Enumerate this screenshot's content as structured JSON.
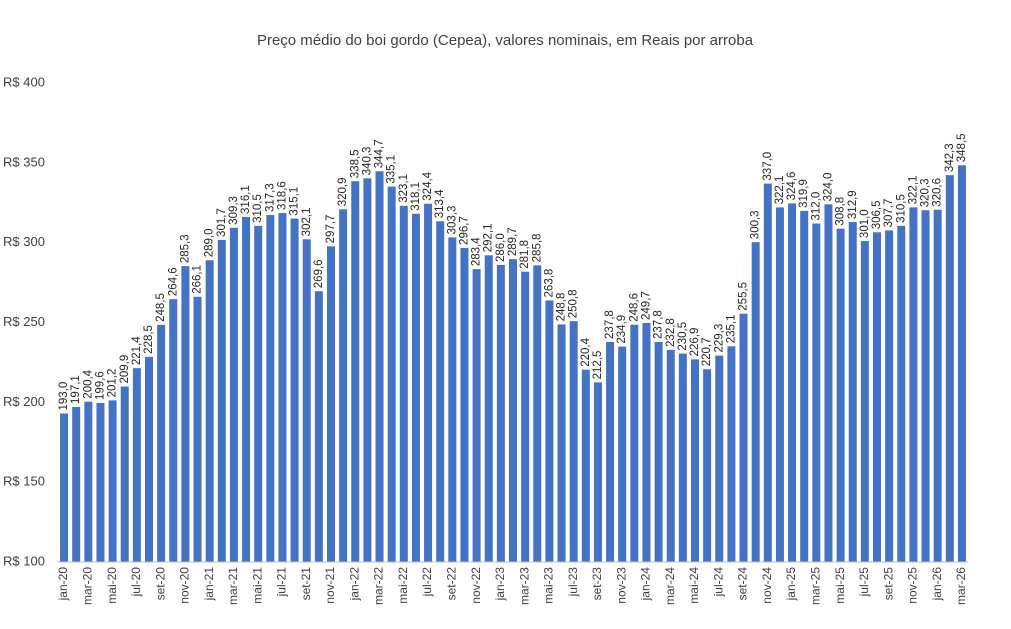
{
  "chart_data": {
    "type": "bar",
    "title": "Preço médio do boi gordo (Cepea), valores nominais, em Reais por arroba",
    "categories": [
      "jan-20",
      null,
      "mar-20",
      null,
      "mai-20",
      null,
      "jul-20",
      null,
      "set-20",
      null,
      "nov-20",
      null,
      "jan-21",
      null,
      "mar-21",
      null,
      "mai-21",
      null,
      "jul-21",
      null,
      "set-21",
      null,
      "nov-21",
      null,
      "jan-22",
      null,
      "mar-22",
      null,
      "mai-22",
      null,
      "jul-22",
      null,
      "set-22",
      null,
      "nov-22",
      null,
      "jan-23",
      null,
      "mar-23",
      null,
      "mai-23",
      null,
      "jul-23",
      null,
      "set-23",
      null,
      "nov-23",
      null,
      "jan-24",
      null,
      "mar-24",
      null,
      "mai-24",
      null,
      "jul-24",
      null,
      "set-24",
      null,
      "nov-24",
      null,
      "jan-25",
      null,
      "mar-25",
      null,
      "mai-25",
      null,
      "jul-25",
      null,
      "set-25",
      null,
      "nov-25",
      null,
      "jan-26",
      null,
      "mar-26"
    ],
    "values": [
      193.0,
      197.1,
      200.4,
      199.6,
      201.2,
      209.9,
      221.4,
      228.5,
      248.5,
      264.6,
      285.3,
      266.1,
      289.0,
      301.7,
      309.3,
      316.1,
      310.5,
      317.3,
      318.6,
      315.1,
      302.1,
      269.6,
      297.7,
      320.9,
      338.5,
      340.3,
      344.7,
      335.1,
      323.1,
      318.1,
      324.4,
      313.4,
      303.3,
      296.7,
      283.4,
      292.1,
      286.0,
      289.7,
      281.8,
      285.8,
      263.8,
      248.8,
      250.8,
      220.4,
      212.5,
      237.8,
      234.9,
      248.6,
      249.7,
      237.8,
      232.8,
      230.5,
      226.9,
      220.7,
      229.3,
      235.1,
      255.5,
      300.3,
      337.0,
      322.1,
      324.6,
      319.9,
      312.0,
      324.0,
      308.8,
      312.9,
      301.0,
      306.5,
      307.7,
      310.5,
      322.1,
      320.3,
      320.6,
      342.3,
      348.5
    ],
    "value_labels": [
      "193,0",
      "197,1",
      "200,4",
      "199,6",
      "201,2",
      "209,9",
      "221,4",
      "228,5",
      "248,5",
      "264,6",
      "285,3",
      "266,1",
      "289,0",
      "301,7",
      "309,3",
      "316,1",
      "310,5",
      "317,3",
      "318,6",
      "315,1",
      "302,1",
      "269,6",
      "297,7",
      "320,9",
      "338,5",
      "340,3",
      "344,7",
      "335,1",
      "323,1",
      "318,1",
      "324,4",
      "313,4",
      "303,3",
      "296,7",
      "283,4",
      "292,1",
      "286,0",
      "289,7",
      "281,8",
      "285,8",
      "263,8",
      "248,8",
      "250,8",
      "220,4",
      "212,5",
      "237,8",
      "234,9",
      "248,6",
      "249,7",
      "237,8",
      "232,8",
      "230,5",
      "226,9",
      "220,7",
      "229,3",
      "235,1",
      "255,5",
      "300,3",
      "337,0",
      "322,1",
      "324,6",
      "319,9",
      "312,0",
      "324,0",
      "308,8",
      "312,9",
      "301,0",
      "306,5",
      "307,7",
      "310,5",
      "322,1",
      "320,3",
      "320,6",
      "342,3",
      "348,5"
    ],
    "color": "#4472c4",
    "ylim": [
      100,
      400
    ],
    "yticks": [
      {
        "value": 100,
        "label": "R$ 100"
      },
      {
        "value": 150,
        "label": "R$ 150"
      },
      {
        "value": 200,
        "label": "R$ 200"
      },
      {
        "value": 250,
        "label": "R$ 250"
      },
      {
        "value": 300,
        "label": "R$ 300"
      },
      {
        "value": 350,
        "label": "R$ 350"
      },
      {
        "value": 400,
        "label": "R$ 400"
      }
    ],
    "grid": false
  }
}
